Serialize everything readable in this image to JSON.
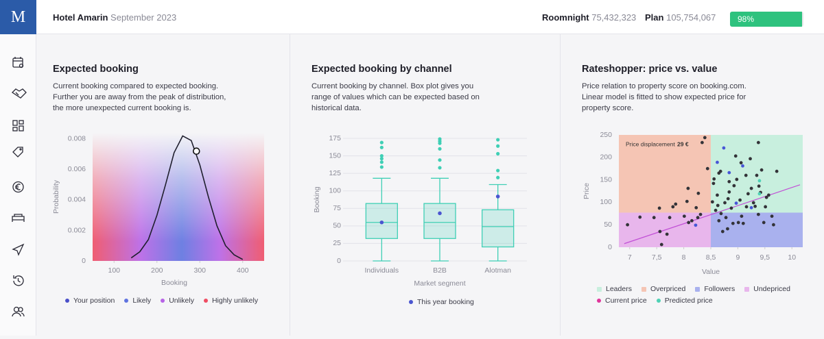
{
  "logo": "M",
  "header": {
    "hotel": "Hotel Amarin",
    "period": "September 2023",
    "roomnight_label": "Roomnight",
    "roomnight": "75,432,323",
    "plan_label": "Plan",
    "plan": "105,754,067",
    "progress": {
      "value": 98,
      "label": "98%"
    },
    "progress_color": "#2ec27e"
  },
  "chart_data": [
    {
      "type": "line",
      "title": "Expected booking",
      "subtitle": "Current booking compared to expected booking. Further you are away from the peak of distribution, the more unexpected current booking is.",
      "x_label": "Booking",
      "y_label": "Probability",
      "x": [
        140,
        160,
        180,
        200,
        220,
        240,
        260,
        280,
        300,
        320,
        340,
        360,
        380,
        400
      ],
      "values": [
        0.0002,
        0.0006,
        0.0014,
        0.003,
        0.005,
        0.0071,
        0.0082,
        0.0079,
        0.0063,
        0.0042,
        0.0023,
        0.001,
        0.0004,
        0.0001
      ],
      "line_color": "#1f1f2e",
      "xlim": [
        50,
        450
      ],
      "ylim": [
        0,
        0.0084
      ],
      "xticks": [
        100,
        200,
        300,
        400
      ],
      "yticks": [
        0,
        0.002,
        0.004,
        0.006,
        0.008
      ],
      "your_position": {
        "x": 292,
        "y": 0.0072
      },
      "legend": [
        {
          "name": "Your position",
          "color": "#4a4fc9"
        },
        {
          "name": "Likely",
          "color": "#5f73e0"
        },
        {
          "name": "Unlikely",
          "color": "#b763e6"
        },
        {
          "name": "Highly unlikely",
          "color": "#ef4d63"
        }
      ]
    },
    {
      "type": "box",
      "title": "Expected booking by channel",
      "subtitle": "Current booking by channel. Box plot gives you range of values which can be expected based on historical data.",
      "x_label": "Market segment",
      "y_label": "Booking",
      "categories": [
        "Individuals",
        "B2B",
        "Alotman"
      ],
      "boxes": [
        {
          "min": 0,
          "q1": 32,
          "median": 55,
          "q3": 82,
          "max": 118,
          "outliers": [
            169,
            162,
            150,
            146,
            141,
            134
          ]
        },
        {
          "min": 0,
          "q1": 32,
          "median": 55,
          "q3": 82,
          "max": 118,
          "outliers": [
            174,
            171,
            168,
            160,
            144,
            133
          ]
        },
        {
          "min": 0,
          "q1": 20,
          "median": 49,
          "q3": 73,
          "max": 109,
          "outliers": [
            173,
            164,
            153,
            129,
            119
          ]
        }
      ],
      "box_color": "#3fcfb5",
      "series": [
        {
          "name": "This year booking",
          "color": "#4a55d0",
          "values": [
            55,
            68,
            92
          ]
        }
      ],
      "ylim": [
        0,
        175
      ],
      "yticks": [
        0,
        25,
        50,
        75,
        100,
        125,
        150,
        175
      ],
      "grid": true
    },
    {
      "type": "scatter",
      "title": "Rateshopper: price vs. value",
      "subtitle": "Price relation to property score on booking.com. Linear model is fitted to show expected price for property score.",
      "x_label": "Value",
      "y_label": "Price",
      "xlim": [
        6.8,
        10.2
      ],
      "ylim": [
        0,
        250
      ],
      "xticks": [
        7,
        {
          "value": 7.5,
          "label": "7,5"
        },
        8,
        {
          "value": 8.5,
          "label": "8,5"
        },
        9,
        {
          "value": 9.5,
          "label": "9,5"
        },
        10
      ],
      "yticks": [
        0,
        50,
        100,
        150,
        200,
        250
      ],
      "x_split": 8.5,
      "y_split": 77,
      "regions": [
        {
          "name": "Leaders",
          "color": "#c8efde",
          "corner": "top-right"
        },
        {
          "name": "Overpriced",
          "color": "#f5c5b4",
          "corner": "top-left"
        },
        {
          "name": "Followers",
          "color": "#a9b1ee",
          "corner": "bottom-right"
        },
        {
          "name": "Undepriced",
          "color": "#e8b6ec",
          "corner": "bottom-left"
        }
      ],
      "annotation": {
        "text": "Price displacement",
        "value": "29 €"
      },
      "points": [
        {
          "color": "#333338",
          "x": [
            6.96,
            7.19,
            7.45,
            7.55,
            7.59,
            7.69,
            7.74,
            7.85,
            8.01,
            8.06,
            8.08,
            8.15,
            8.23,
            8.26,
            8.31,
            8.39,
            8.34,
            8.44,
            8.27,
            8.09,
            7.8,
            7.56,
            8.53,
            8.55,
            8.62,
            8.63,
            8.59,
            8.65,
            8.69,
            8.72,
            8.76,
            8.78,
            8.82,
            8.84,
            8.88,
            8.91,
            8.93,
            8.96,
            8.98,
            9.04,
            9.07,
            9.1,
            9.15,
            9.19,
            9.23,
            9.25,
            9.29,
            9.32,
            9.35,
            9.39,
            9.42,
            9.44,
            9.48,
            9.53,
            9.57,
            9.63,
            9.66,
            9.72,
            9.51,
            9.16,
            8.84,
            8.81,
            9.01,
            9.38,
            8.65,
            8.68,
            8.56,
            9.06,
            9.38
          ],
          "y": [
            50,
            67,
            66,
            87,
            6,
            29,
            66,
            96,
            69,
            102,
            131,
            59,
            88,
            66,
            73,
            244,
            233,
            175,
            120,
            55,
            90,
            35,
            101,
            142,
            116,
            93,
            82,
            59,
            75,
            35,
            99,
            66,
            108,
            123,
            87,
            53,
            137,
            203,
            151,
            105,
            69,
            53,
            160,
            119,
            197,
            131,
            99,
            91,
            160,
            136,
            122,
            172,
            55,
            111,
            116,
            69,
            50,
            169,
            90,
            90,
            146,
            41,
            55,
            73,
            165,
            169,
            152,
            188,
            233
          ]
        },
        {
          "color": "#4756d6",
          "x": [
            8.74,
            9.09,
            8.62,
            8.97,
            9.25,
            8.22,
            8.84
          ],
          "y": [
            221,
            181,
            189,
            98,
            88,
            49,
            166
          ]
        },
        {
          "color": "#4fd1b5",
          "x": [
            9.4,
            9.4
          ],
          "y": [
            148,
            119
          ]
        }
      ],
      "fit": {
        "color": "#c14fd6",
        "x": [
          6.9,
          10.15
        ],
        "y": [
          8,
          139
        ]
      },
      "legend": [
        {
          "name": "Current price",
          "color": "#e0359b"
        },
        {
          "name": "Predicted price",
          "color": "#4fd1b5"
        }
      ]
    }
  ]
}
